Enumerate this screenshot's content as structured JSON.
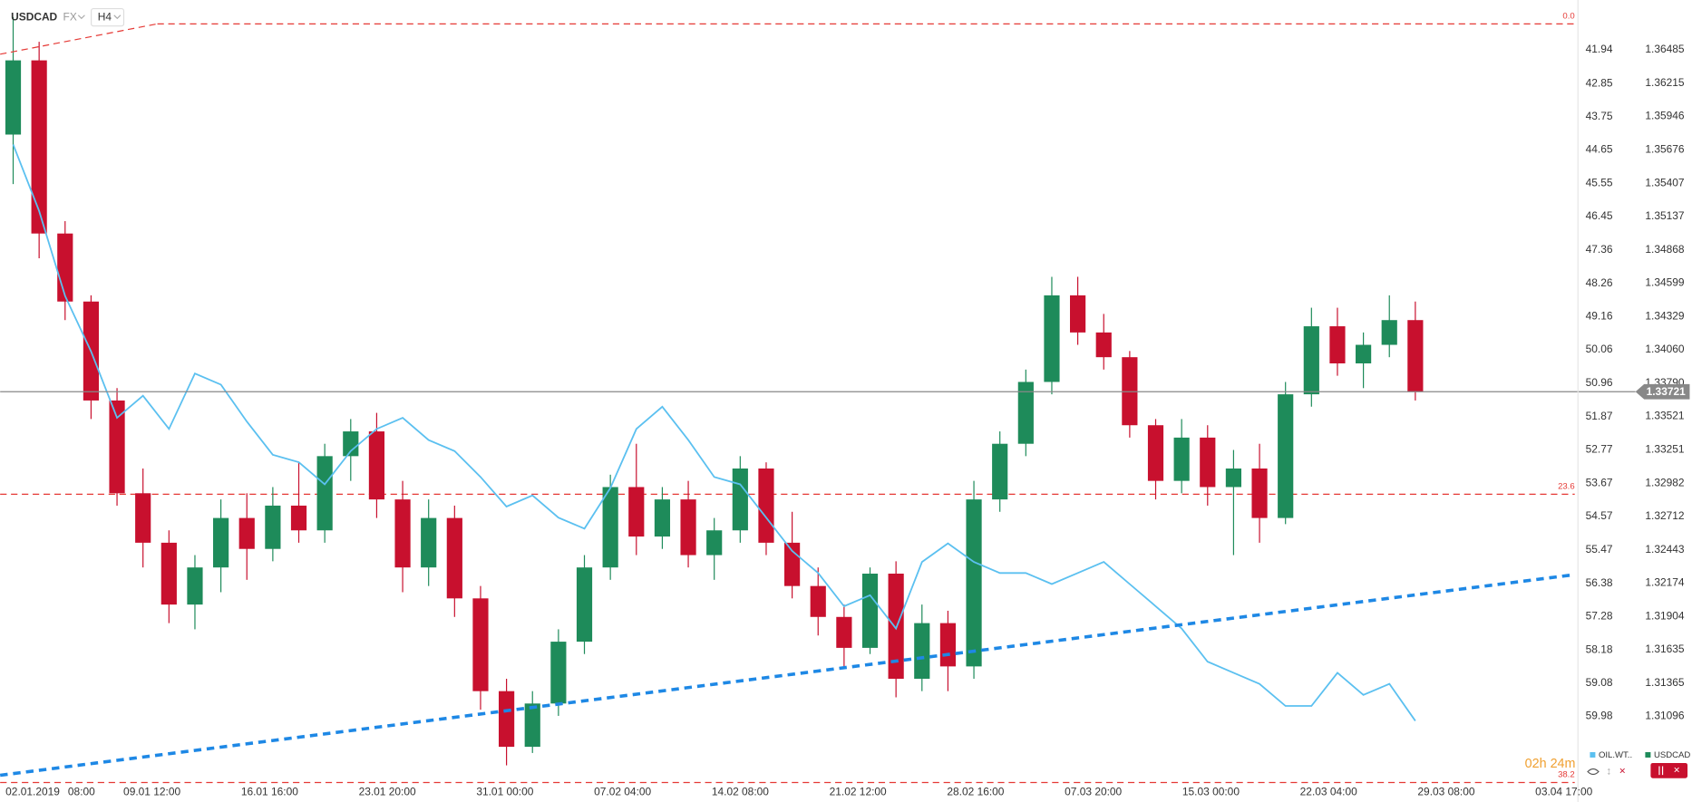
{
  "chart_data": {
    "type": "candlestick",
    "title": "USDCAD",
    "market": "FX",
    "timeframe": "H4",
    "countdown": "02h 24m",
    "x_labels": [
      "02.01.2019",
      "08:00",
      "09.01 12:00",
      "16.01 16:00",
      "23.01 20:00",
      "31.01 00:00",
      "07.02 04:00",
      "14.02 08:00",
      "21.02 12:00",
      "28.02 16:00",
      "07.03 20:00",
      "15.03 00:00",
      "22.03 04:00",
      "29.03 08:00",
      "03.04 17:00"
    ],
    "ylim": [
      1.3043,
      1.36888
    ],
    "yticks": [
      1.36485,
      1.36215,
      1.35946,
      1.35676,
      1.35407,
      1.35137,
      1.34868,
      1.34599,
      1.34329,
      {
        "value": 1.3406,
        "label": "1.34060"
      },
      {
        "value": 1.3379,
        "label": "1.33790"
      },
      1.33521,
      1.33251,
      1.32982,
      1.32712,
      1.32443,
      1.32174,
      1.31904,
      1.31635,
      1.31365,
      1.31096
    ],
    "y2lim": [
      62.21,
      40.59
    ],
    "y2ticks": [
      41.94,
      42.85,
      43.75,
      44.65,
      45.55,
      46.45,
      47.36,
      48.26,
      49.16,
      50.06,
      50.96,
      51.87,
      52.77,
      53.67,
      54.57,
      55.47,
      56.38,
      57.28,
      58.18,
      59.08,
      59.98
    ],
    "last_price": {
      "value": 1.33721,
      "color": "#888888"
    },
    "fib_levels": [
      {
        "label": "0.0",
        "value": 1.36695
      },
      {
        "label": "23.6",
        "value": 1.32892
      },
      {
        "label": "38.2",
        "value": 1.30561
      }
    ],
    "fib_color": "#e53935",
    "trendline": {
      "color": "#1e88e5",
      "values": [
        1.3062,
        1.3224
      ]
    },
    "series": [
      {
        "name": "USDCAD",
        "type": "candlestick",
        "up_color": "#1e8b5a",
        "down_color": "#c8102e",
        "open": [
          1.358,
          1.364,
          1.35,
          1.3445,
          1.3365,
          1.329,
          1.325,
          1.32,
          1.323,
          1.327,
          1.3245,
          1.328,
          1.326,
          1.332,
          1.334,
          1.3285,
          1.323,
          1.327,
          1.3205,
          1.313,
          1.3085,
          1.312,
          1.317,
          1.323,
          1.3295,
          1.3255,
          1.3285,
          1.324,
          1.326,
          1.331,
          1.325,
          1.3215,
          1.319,
          1.3165,
          1.3225,
          1.314,
          1.3185,
          1.315,
          1.3285,
          1.333,
          1.338,
          1.345,
          1.342,
          1.34,
          1.3345,
          1.33,
          1.3335,
          1.3295,
          1.331,
          1.327,
          1.337,
          1.3425,
          1.3395,
          1.341,
          1.343
        ],
        "high": [
          1.3675,
          1.3655,
          1.351,
          1.345,
          1.3375,
          1.331,
          1.326,
          1.324,
          1.3285,
          1.329,
          1.3295,
          1.3315,
          1.333,
          1.335,
          1.3355,
          1.33,
          1.3285,
          1.328,
          1.3215,
          1.314,
          1.313,
          1.318,
          1.324,
          1.3305,
          1.333,
          1.3295,
          1.33,
          1.327,
          1.332,
          1.3315,
          1.3275,
          1.323,
          1.32,
          1.323,
          1.3235,
          1.32,
          1.3195,
          1.33,
          1.334,
          1.339,
          1.3465,
          1.3465,
          1.3435,
          1.3405,
          1.335,
          1.335,
          1.3345,
          1.3325,
          1.333,
          1.338,
          1.344,
          1.344,
          1.342,
          1.345,
          1.3445
        ],
        "low": [
          1.354,
          1.348,
          1.343,
          1.335,
          1.328,
          1.323,
          1.3185,
          1.318,
          1.321,
          1.322,
          1.3235,
          1.325,
          1.325,
          1.33,
          1.327,
          1.321,
          1.3215,
          1.319,
          1.3115,
          1.307,
          1.308,
          1.311,
          1.316,
          1.322,
          1.324,
          1.3245,
          1.323,
          1.322,
          1.325,
          1.324,
          1.3205,
          1.3175,
          1.315,
          1.316,
          1.3125,
          1.313,
          1.313,
          1.314,
          1.3275,
          1.332,
          1.337,
          1.341,
          1.339,
          1.3335,
          1.3285,
          1.329,
          1.328,
          1.324,
          1.325,
          1.3265,
          1.336,
          1.3385,
          1.3375,
          1.34,
          1.3365
        ],
        "close": [
          1.364,
          1.35,
          1.3445,
          1.3365,
          1.329,
          1.325,
          1.32,
          1.323,
          1.327,
          1.3245,
          1.328,
          1.326,
          1.332,
          1.334,
          1.3285,
          1.323,
          1.327,
          1.3205,
          1.313,
          1.3085,
          1.312,
          1.317,
          1.323,
          1.3295,
          1.3255,
          1.3285,
          1.324,
          1.326,
          1.331,
          1.325,
          1.3215,
          1.319,
          1.3165,
          1.3225,
          1.314,
          1.3185,
          1.315,
          1.3285,
          1.333,
          1.338,
          1.345,
          1.342,
          1.34,
          1.3345,
          1.33,
          1.3335,
          1.3295,
          1.331,
          1.327,
          1.337,
          1.3425,
          1.3395,
          1.341,
          1.343,
          1.3372
        ]
      },
      {
        "name": "OIL.WT..",
        "type": "line",
        "axis": "y2",
        "color": "#5bc0f0",
        "values": [
          44.5,
          46.3,
          48.6,
          50.1,
          51.9,
          51.3,
          52.2,
          50.7,
          51.0,
          52.0,
          52.9,
          53.1,
          53.7,
          52.8,
          52.2,
          51.9,
          52.5,
          52.8,
          53.5,
          54.3,
          54.0,
          54.6,
          54.9,
          53.8,
          52.2,
          51.6,
          52.5,
          53.5,
          53.7,
          54.6,
          55.5,
          56.1,
          57.0,
          56.7,
          57.6,
          55.8,
          55.3,
          55.8,
          56.1,
          56.1,
          56.4,
          56.1,
          55.8,
          56.4,
          57.0,
          57.6,
          58.5,
          58.8,
          59.1,
          59.7,
          59.7,
          58.8,
          59.4,
          59.1,
          60.1
        ]
      }
    ]
  }
}
